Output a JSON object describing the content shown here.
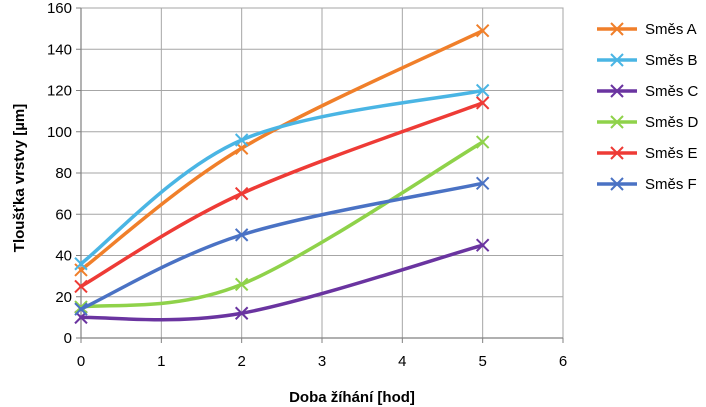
{
  "chart_data": {
    "type": "line",
    "title": "",
    "xlabel": "Doba žíhání [hod]",
    "ylabel": "Tloušťka vrstvy [µm]",
    "xlim": [
      0,
      6
    ],
    "ylim": [
      0,
      160
    ],
    "x_ticks": [
      "0",
      "1",
      "2",
      "3",
      "4",
      "5",
      "6"
    ],
    "y_ticks": [
      "0",
      "20",
      "40",
      "60",
      "80",
      "100",
      "120",
      "140",
      "160"
    ],
    "grid": true,
    "legend_position": "right",
    "marker": "x",
    "x": [
      0,
      2,
      5
    ],
    "series": [
      {
        "name": "Směs A",
        "color": "#f07f2a",
        "values": [
          33,
          92,
          149
        ]
      },
      {
        "name": "Směs B",
        "color": "#4ab5e4",
        "values": [
          36,
          96,
          120
        ]
      },
      {
        "name": "Směs C",
        "color": "#6a34a0",
        "values": [
          10,
          12,
          45
        ]
      },
      {
        "name": "Směs D",
        "color": "#8fd24a",
        "values": [
          15,
          26,
          95
        ]
      },
      {
        "name": "Směs E",
        "color": "#ee3b36",
        "values": [
          25,
          70,
          114
        ]
      },
      {
        "name": "Směs F",
        "color": "#4a72c4",
        "values": [
          14,
          50,
          75
        ]
      }
    ]
  }
}
